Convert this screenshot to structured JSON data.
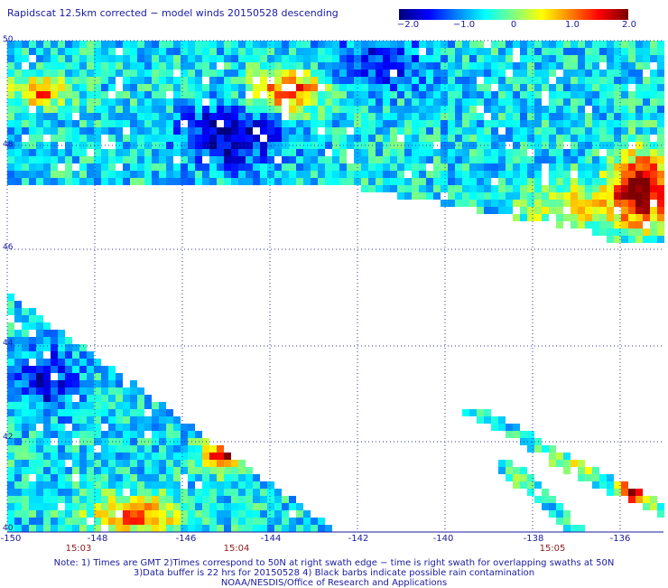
{
  "title": "Rapidscat 12.5km corrected − model winds 20150528 descending",
  "colorbar": {
    "labels": [
      "−2.0",
      "−1.0",
      "0",
      "1.0",
      "2.0"
    ],
    "values": [
      -2.0,
      -1.0,
      0,
      1.0,
      2.0
    ],
    "colors": [
      "#00007f",
      "#0000ff",
      "#0080ff",
      "#00ffff",
      "#80ff80",
      "#ffff00",
      "#ff8000",
      "#ff0000",
      "#7f0000"
    ]
  },
  "map": {
    "lon_range": [
      -150,
      -135
    ],
    "lat_range": [
      40,
      50
    ],
    "grid": true,
    "x_ticks": [
      "-150",
      "-148",
      "-146",
      "-144",
      "-142",
      "-140",
      "-138",
      "-136"
    ],
    "y_ticks": [
      "50",
      "48",
      "46",
      "44",
      "42",
      "40"
    ],
    "time_ticks": [
      "15:03",
      "15:04",
      "15:05"
    ],
    "time_tick_lons": [
      -148,
      -144,
      -137.5
    ]
  },
  "notes": {
    "line1": "Note: 1) Times are GMT 2)Times correspond to 50N at right swath edge − time is right swath for overlapping swaths at 50N",
    "line2": "3)Data buffer is 22 hrs for 20150528 4) Black barbs indicate possible rain contamination",
    "line3": "NOAA/NESDIS/Office of Research and Applications"
  }
}
